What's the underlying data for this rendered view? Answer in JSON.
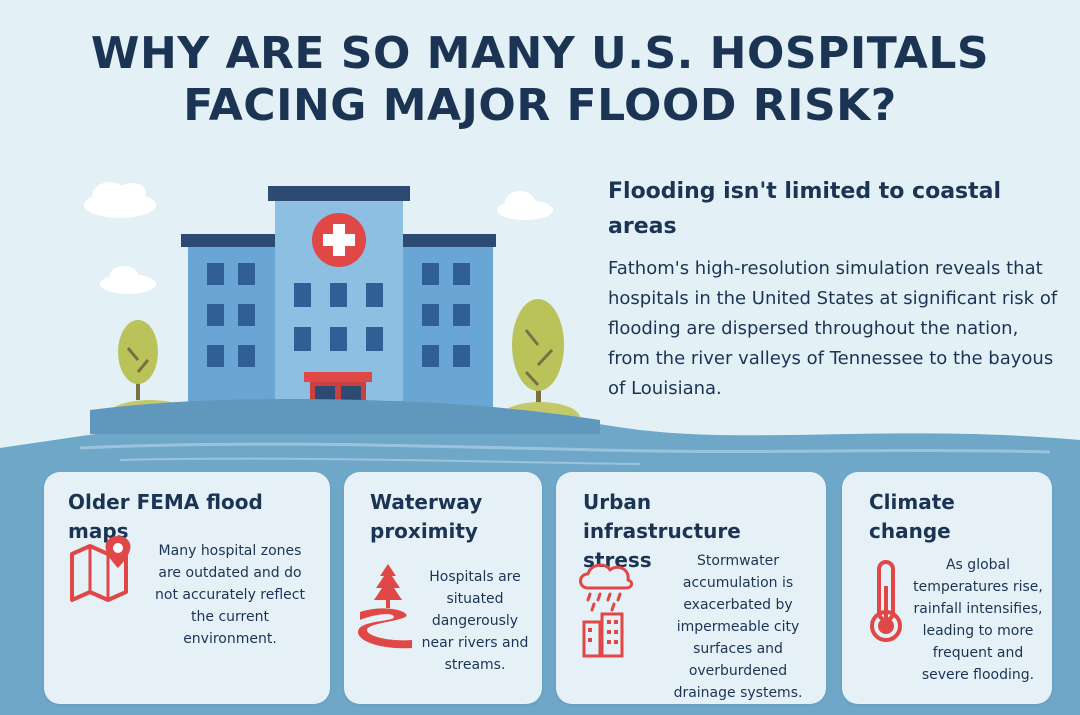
{
  "title": {
    "line1": "WHY ARE SO MANY U.S. HOSPITALS",
    "line2": "FACING MAJOR FLOOD RISK?"
  },
  "lead": {
    "heading": "Flooding isn't limited to coastal areas",
    "body": "Fathom's high-resolution simulation reveals that hospitals in the United States at significant risk of flooding are dispersed throughout the nation, from the river valleys of Tennessee to the bayous of Louisiana."
  },
  "cards": [
    {
      "title": "Older FEMA flood maps",
      "text": "Many hospital zones are outdated and do not accurately reflect the current environment.",
      "icon": "map-pin-icon"
    },
    {
      "title": "Waterway proximity",
      "text": "Hospitals  are situated dangerously near rivers and streams.",
      "icon": "river-icon"
    },
    {
      "title": "Urban infrastructure stress",
      "text": "Stormwater accumulation is exacerbated by impermeable city surfaces and overburdened drainage systems.",
      "icon": "rain-city-icon"
    },
    {
      "title": "Climate change",
      "text": "As global temperatures rise, rainfall intensifies, leading to more frequent and severe flooding.",
      "icon": "thermometer-icon"
    }
  ],
  "colors": {
    "background": "#e3f0f6",
    "water": "#6aa3c6",
    "title": "#1c3454",
    "accent_red": "#e04848",
    "building": "#5d9bcf",
    "tree": "#b9c35a"
  }
}
